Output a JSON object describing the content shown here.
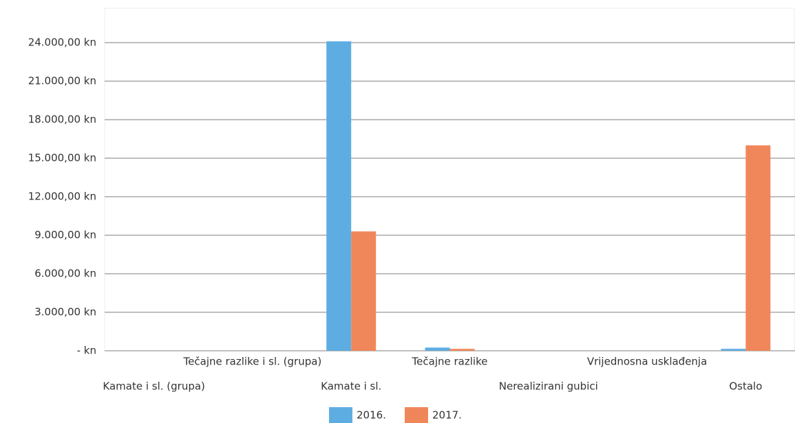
{
  "chart_data": {
    "type": "bar",
    "categories": [
      "Kamate i sl. (grupa)",
      "Tečajne razlike i sl. (grupa)",
      "Kamate i sl.",
      "Tečajne razlike",
      "Nerealizirani gubici",
      "Vrijednosna usklađenja",
      "Ostalo"
    ],
    "series": [
      {
        "name": "2016.",
        "color": "#5dade2",
        "values": [
          0,
          0,
          24100,
          250,
          0,
          0,
          150
        ]
      },
      {
        "name": "2017.",
        "color": "#f0875a",
        "values": [
          0,
          0,
          9300,
          150,
          0,
          0,
          16000
        ]
      }
    ],
    "ylim": [
      0,
      25500
    ],
    "yticks": [
      {
        "value": 0,
        "label": "-  kn"
      },
      {
        "value": 3000,
        "label": "3.000,00 kn"
      },
      {
        "value": 6000,
        "label": "6.000,00 kn"
      },
      {
        "value": 9000,
        "label": "9.000,00 kn"
      },
      {
        "value": 12000,
        "label": "12.000,00 kn"
      },
      {
        "value": 15000,
        "label": "15.000,00 kn"
      },
      {
        "value": 18000,
        "label": "18.000,00 kn"
      },
      {
        "value": 21000,
        "label": "21.000,00 kn"
      },
      {
        "value": 24000,
        "label": "24.000,00 kn"
      }
    ],
    "grid": true
  }
}
